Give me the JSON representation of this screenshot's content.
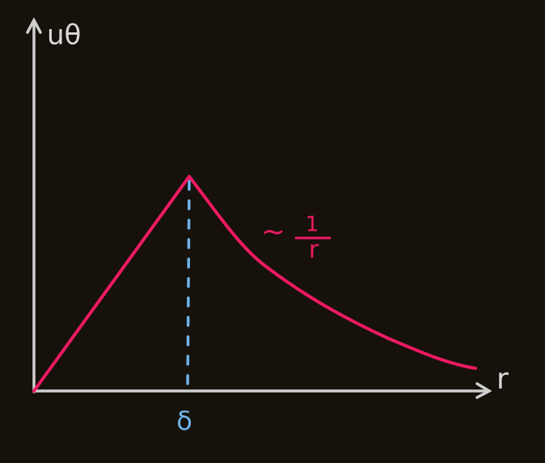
{
  "axes": {
    "y_label": "uθ",
    "x_label": "r"
  },
  "marker": {
    "label": "δ"
  },
  "annotation": {
    "prefix": "~",
    "numerator": "1",
    "denominator": "r"
  }
}
